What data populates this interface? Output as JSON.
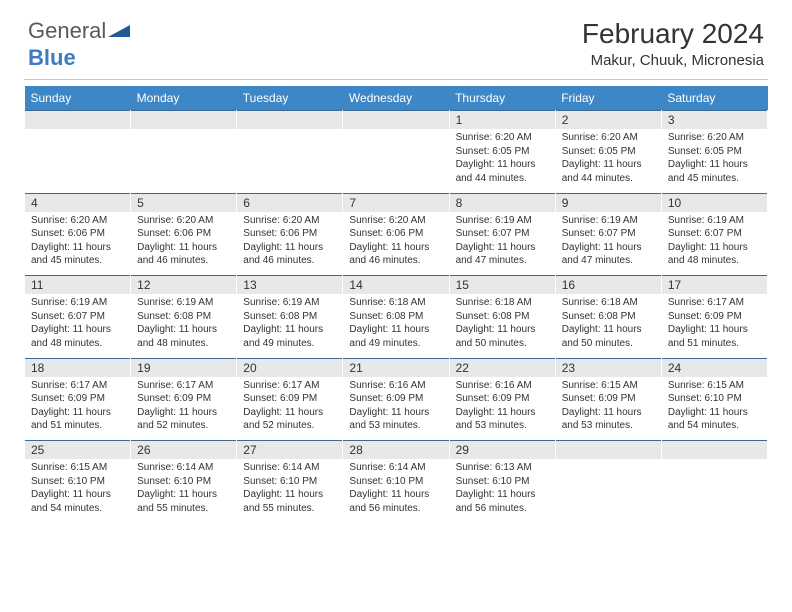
{
  "logo": {
    "text1": "General",
    "text2": "Blue",
    "shapeColor": "#1f5a96"
  },
  "title": "February 2024",
  "location": "Makur, Chuuk, Micronesia",
  "colors": {
    "headerBg": "#3d87c7",
    "headerText": "#ffffff",
    "dayBg": "#e8e8e8",
    "rowBorder": "#3d6a94",
    "text": "#333333"
  },
  "weekdays": [
    "Sunday",
    "Monday",
    "Tuesday",
    "Wednesday",
    "Thursday",
    "Friday",
    "Saturday"
  ],
  "weeks": [
    {
      "nums": [
        "",
        "",
        "",
        "",
        "1",
        "2",
        "3"
      ],
      "cells": [
        null,
        null,
        null,
        null,
        {
          "sunrise": "6:20 AM",
          "sunset": "6:05 PM",
          "dh": "11",
          "dm": "44"
        },
        {
          "sunrise": "6:20 AM",
          "sunset": "6:05 PM",
          "dh": "11",
          "dm": "44"
        },
        {
          "sunrise": "6:20 AM",
          "sunset": "6:05 PM",
          "dh": "11",
          "dm": "45"
        }
      ]
    },
    {
      "nums": [
        "4",
        "5",
        "6",
        "7",
        "8",
        "9",
        "10"
      ],
      "cells": [
        {
          "sunrise": "6:20 AM",
          "sunset": "6:06 PM",
          "dh": "11",
          "dm": "45"
        },
        {
          "sunrise": "6:20 AM",
          "sunset": "6:06 PM",
          "dh": "11",
          "dm": "46"
        },
        {
          "sunrise": "6:20 AM",
          "sunset": "6:06 PM",
          "dh": "11",
          "dm": "46"
        },
        {
          "sunrise": "6:20 AM",
          "sunset": "6:06 PM",
          "dh": "11",
          "dm": "46"
        },
        {
          "sunrise": "6:19 AM",
          "sunset": "6:07 PM",
          "dh": "11",
          "dm": "47"
        },
        {
          "sunrise": "6:19 AM",
          "sunset": "6:07 PM",
          "dh": "11",
          "dm": "47"
        },
        {
          "sunrise": "6:19 AM",
          "sunset": "6:07 PM",
          "dh": "11",
          "dm": "48"
        }
      ]
    },
    {
      "nums": [
        "11",
        "12",
        "13",
        "14",
        "15",
        "16",
        "17"
      ],
      "cells": [
        {
          "sunrise": "6:19 AM",
          "sunset": "6:07 PM",
          "dh": "11",
          "dm": "48"
        },
        {
          "sunrise": "6:19 AM",
          "sunset": "6:08 PM",
          "dh": "11",
          "dm": "48"
        },
        {
          "sunrise": "6:19 AM",
          "sunset": "6:08 PM",
          "dh": "11",
          "dm": "49"
        },
        {
          "sunrise": "6:18 AM",
          "sunset": "6:08 PM",
          "dh": "11",
          "dm": "49"
        },
        {
          "sunrise": "6:18 AM",
          "sunset": "6:08 PM",
          "dh": "11",
          "dm": "50"
        },
        {
          "sunrise": "6:18 AM",
          "sunset": "6:08 PM",
          "dh": "11",
          "dm": "50"
        },
        {
          "sunrise": "6:17 AM",
          "sunset": "6:09 PM",
          "dh": "11",
          "dm": "51"
        }
      ]
    },
    {
      "nums": [
        "18",
        "19",
        "20",
        "21",
        "22",
        "23",
        "24"
      ],
      "cells": [
        {
          "sunrise": "6:17 AM",
          "sunset": "6:09 PM",
          "dh": "11",
          "dm": "51"
        },
        {
          "sunrise": "6:17 AM",
          "sunset": "6:09 PM",
          "dh": "11",
          "dm": "52"
        },
        {
          "sunrise": "6:17 AM",
          "sunset": "6:09 PM",
          "dh": "11",
          "dm": "52"
        },
        {
          "sunrise": "6:16 AM",
          "sunset": "6:09 PM",
          "dh": "11",
          "dm": "53"
        },
        {
          "sunrise": "6:16 AM",
          "sunset": "6:09 PM",
          "dh": "11",
          "dm": "53"
        },
        {
          "sunrise": "6:15 AM",
          "sunset": "6:09 PM",
          "dh": "11",
          "dm": "53"
        },
        {
          "sunrise": "6:15 AM",
          "sunset": "6:10 PM",
          "dh": "11",
          "dm": "54"
        }
      ]
    },
    {
      "nums": [
        "25",
        "26",
        "27",
        "28",
        "29",
        "",
        ""
      ],
      "cells": [
        {
          "sunrise": "6:15 AM",
          "sunset": "6:10 PM",
          "dh": "11",
          "dm": "54"
        },
        {
          "sunrise": "6:14 AM",
          "sunset": "6:10 PM",
          "dh": "11",
          "dm": "55"
        },
        {
          "sunrise": "6:14 AM",
          "sunset": "6:10 PM",
          "dh": "11",
          "dm": "55"
        },
        {
          "sunrise": "6:14 AM",
          "sunset": "6:10 PM",
          "dh": "11",
          "dm": "56"
        },
        {
          "sunrise": "6:13 AM",
          "sunset": "6:10 PM",
          "dh": "11",
          "dm": "56"
        },
        null,
        null
      ]
    }
  ],
  "labels": {
    "sunrise": "Sunrise:",
    "sunset": "Sunset:",
    "daylightPrefix": "Daylight:",
    "hoursWord": "hours",
    "andWord": "and",
    "minutesWord": "minutes."
  }
}
